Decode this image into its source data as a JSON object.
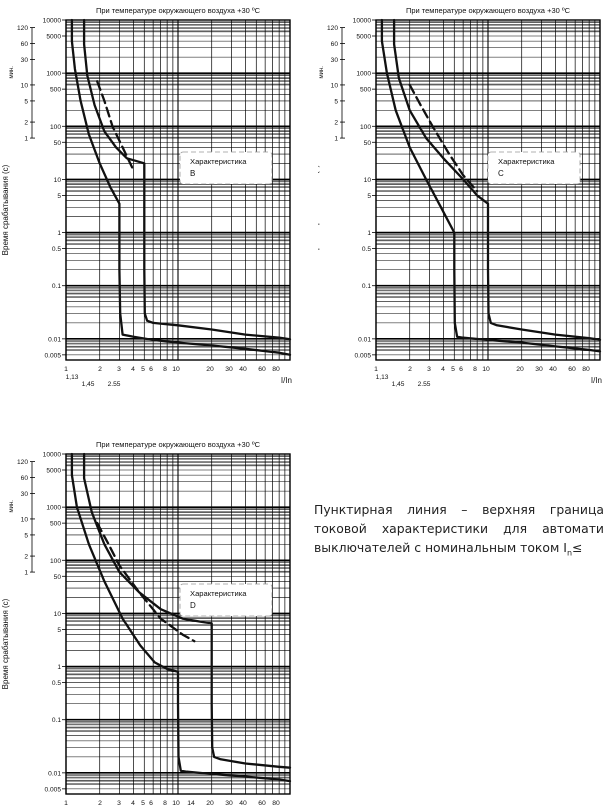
{
  "chart_data": [
    {
      "id": "chart-b",
      "type": "line",
      "title": "При температуре окружающего воздуха +30 ºС",
      "ylabel": "Время срабатывания (с)",
      "xlabel": "I/In",
      "minutes_label": "мин.",
      "x_scale": "log",
      "y_scale": "log",
      "xlim": [
        1,
        100
      ],
      "ylim": [
        0.004,
        10000
      ],
      "x_ticks": [
        "1",
        "2",
        "3",
        "4",
        "5",
        "6",
        "8",
        "10",
        "20",
        "30",
        "40",
        "60",
        "80"
      ],
      "x_ticks_lower": [
        "1,13",
        "1,45",
        "2.55"
      ],
      "y_ticks": [
        "10000",
        "5000",
        "1000",
        "500",
        "100",
        "50",
        "10",
        "5",
        "1",
        "0.5",
        "0.1",
        "0.01",
        "0.005"
      ],
      "minute_ticks": [
        "120",
        "60",
        "30",
        "10",
        "5",
        "2",
        "1"
      ],
      "legend_title": "Характеристика",
      "legend_letter": "B",
      "series": [
        {
          "style": "solid",
          "x": [
            1.13,
            1.13,
            1.2,
            1.35,
            1.6,
            2.0,
            2.5,
            3.0,
            3.0,
            3.05,
            3.2,
            4,
            6,
            10,
            20,
            40,
            80,
            100
          ],
          "y": [
            10000,
            4000,
            1200,
            300,
            70,
            20,
            7,
            3.5,
            0.2,
            0.03,
            0.012,
            0.011,
            0.0095,
            0.0085,
            0.0075,
            0.0065,
            0.0055,
            0.005
          ]
        },
        {
          "style": "solid",
          "x": [
            1.45,
            1.45,
            1.55,
            1.8,
            2.2,
            2.8,
            3.5,
            4.3,
            5.0,
            5.0,
            5.05,
            5.3,
            6,
            10,
            20,
            40,
            80,
            100
          ],
          "y": [
            10000,
            3500,
            900,
            250,
            80,
            40,
            25,
            22,
            20,
            0.2,
            0.03,
            0.022,
            0.02,
            0.018,
            0.015,
            0.012,
            0.0105,
            0.0098
          ]
        },
        {
          "style": "dashed",
          "x": [
            1.9,
            2.2,
            2.6,
            3.2,
            4.0
          ],
          "y": [
            700,
            300,
            100,
            40,
            15
          ]
        }
      ]
    },
    {
      "id": "chart-c",
      "type": "line",
      "title": "При температуре окружающего воздуха +30 ºС",
      "ylabel": "Время срабатывания (с)",
      "xlabel": "I/In",
      "minutes_label": "мин.",
      "x_scale": "log",
      "y_scale": "log",
      "xlim": [
        1,
        100
      ],
      "ylim": [
        0.004,
        10000
      ],
      "x_ticks": [
        "1",
        "2",
        "3",
        "4",
        "5",
        "6",
        "8",
        "10",
        "20",
        "30",
        "40",
        "60",
        "80"
      ],
      "x_ticks_lower": [
        "1,13",
        "1,45",
        "2.55"
      ],
      "y_ticks": [
        "10000",
        "5000",
        "1000",
        "500",
        "100",
        "50",
        "10",
        "5",
        "1",
        "0.5",
        "0.1",
        "0.01",
        "0.005"
      ],
      "minute_ticks": [
        "120",
        "60",
        "30",
        "10",
        "5",
        "2",
        "1"
      ],
      "legend_title": "Характеристика",
      "legend_letter": "C",
      "series": [
        {
          "style": "solid",
          "x": [
            1.13,
            1.13,
            1.25,
            1.5,
            2.0,
            2.8,
            3.8,
            5.0,
            5.0,
            5.05,
            5.3,
            6,
            10,
            20,
            40,
            80,
            100
          ],
          "y": [
            10000,
            4000,
            1000,
            200,
            40,
            10,
            3,
            1,
            0.2,
            0.02,
            0.011,
            0.0105,
            0.0095,
            0.0085,
            0.0072,
            0.0062,
            0.0058
          ]
        },
        {
          "style": "solid",
          "x": [
            1.45,
            1.45,
            1.6,
            2.0,
            2.8,
            4.0,
            6.0,
            8.0,
            10.0,
            10.0,
            10.1,
            10.6,
            12,
            20,
            40,
            80,
            100
          ],
          "y": [
            10000,
            3500,
            800,
            200,
            60,
            25,
            10,
            5,
            3.5,
            0.2,
            0.03,
            0.02,
            0.018,
            0.015,
            0.012,
            0.0103,
            0.0096
          ]
        },
        {
          "style": "dashed",
          "x": [
            2.0,
            2.5,
            3.2,
            4.5,
            6.0,
            8.0
          ],
          "y": [
            600,
            250,
            100,
            30,
            12,
            6
          ]
        }
      ]
    },
    {
      "id": "chart-d",
      "type": "line",
      "title": "При температуре окружающего воздуха +30 ºС",
      "ylabel": "Время срабатывания (с)",
      "xlabel": "",
      "minutes_label": "мин.",
      "x_scale": "log",
      "y_scale": "log",
      "xlim": [
        1,
        100
      ],
      "ylim": [
        0.004,
        10000
      ],
      "x_ticks": [
        "1",
        "2",
        "3",
        "4",
        "5",
        "6",
        "8",
        "10",
        "14",
        "20",
        "30",
        "40",
        "60",
        "80"
      ],
      "x_ticks_lower": [],
      "y_ticks": [
        "10000",
        "5000",
        "1000",
        "500",
        "100",
        "50",
        "10",
        "5",
        "1",
        "0.5",
        "0.1",
        "0.01",
        "0.005"
      ],
      "minute_ticks": [
        "120",
        "60",
        "30",
        "10",
        "5",
        "2",
        "1"
      ],
      "legend_title": "Характеристика",
      "legend_letter": "D",
      "series": [
        {
          "style": "solid",
          "x": [
            1.13,
            1.13,
            1.25,
            1.6,
            2.2,
            3.2,
            4.6,
            6.2,
            8.0,
            10.0,
            10.0,
            10.1,
            10.6,
            12,
            20,
            40,
            80,
            100
          ],
          "y": [
            10000,
            4000,
            1000,
            200,
            40,
            8,
            2.5,
            1.2,
            0.9,
            0.8,
            0.2,
            0.02,
            0.011,
            0.0105,
            0.0095,
            0.0085,
            0.0075,
            0.007
          ]
        },
        {
          "style": "solid",
          "x": [
            1.45,
            1.45,
            1.7,
            2.2,
            3.0,
            4.5,
            7.0,
            11.0,
            16.0,
            20.0,
            20.0,
            20.2,
            21,
            24,
            40,
            80,
            100
          ],
          "y": [
            10000,
            3500,
            800,
            200,
            60,
            25,
            12,
            8,
            7,
            6.5,
            0.2,
            0.03,
            0.02,
            0.018,
            0.015,
            0.013,
            0.0125
          ]
        },
        {
          "style": "dashed",
          "x": [
            1.9,
            2.4,
            3.0,
            4.5,
            7.0,
            11.0,
            14.0
          ],
          "y": [
            500,
            200,
            80,
            25,
            8,
            4,
            3
          ]
        }
      ]
    }
  ],
  "note": {
    "line1": "Пунктирная линия – верхняя граница",
    "line2": "токовой характеристики для автомати",
    "line3": "выключателей с номинальным током I",
    "line3_sub": "n",
    "line3_end": "≤"
  }
}
